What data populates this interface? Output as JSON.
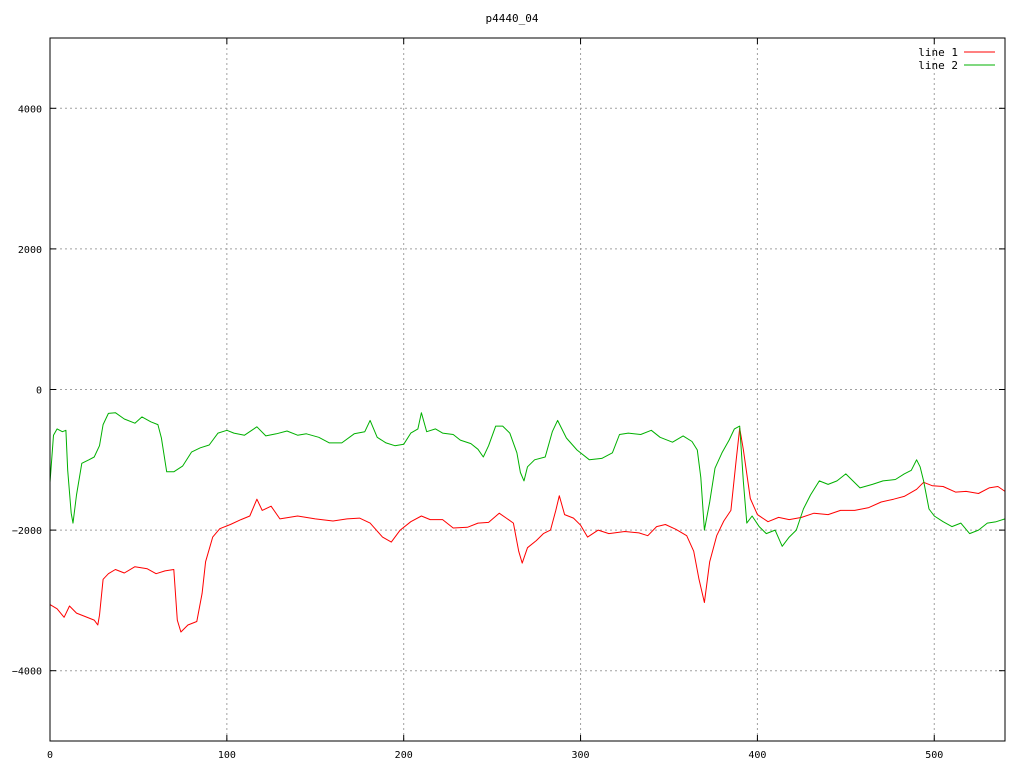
{
  "chart_data": {
    "type": "line",
    "title": "p4440_04",
    "xlabel": "",
    "ylabel": "",
    "xlim": [
      0,
      540
    ],
    "ylim": [
      -5000,
      5000
    ],
    "xticks": [
      0,
      100,
      200,
      300,
      400,
      500
    ],
    "yticks": [
      -4000,
      -2000,
      0,
      2000,
      4000
    ],
    "grid": true,
    "legend_position": "top-right",
    "series": [
      {
        "name": "line 1",
        "color": "#ff0000",
        "points": [
          [
            0,
            -3060
          ],
          [
            4,
            -3120
          ],
          [
            8,
            -3240
          ],
          [
            11,
            -3080
          ],
          [
            15,
            -3180
          ],
          [
            20,
            -3230
          ],
          [
            25,
            -3280
          ],
          [
            27,
            -3350
          ],
          [
            28,
            -3210
          ],
          [
            30,
            -2700
          ],
          [
            33,
            -2620
          ],
          [
            37,
            -2560
          ],
          [
            42,
            -2610
          ],
          [
            48,
            -2520
          ],
          [
            55,
            -2550
          ],
          [
            60,
            -2620
          ],
          [
            65,
            -2580
          ],
          [
            70,
            -2560
          ],
          [
            72,
            -3280
          ],
          [
            74,
            -3450
          ],
          [
            78,
            -3350
          ],
          [
            83,
            -3300
          ],
          [
            86,
            -2900
          ],
          [
            88,
            -2450
          ],
          [
            92,
            -2100
          ],
          [
            96,
            -1980
          ],
          [
            102,
            -1920
          ],
          [
            108,
            -1850
          ],
          [
            113,
            -1800
          ],
          [
            117,
            -1560
          ],
          [
            120,
            -1720
          ],
          [
            125,
            -1660
          ],
          [
            130,
            -1840
          ],
          [
            140,
            -1800
          ],
          [
            150,
            -1840
          ],
          [
            160,
            -1870
          ],
          [
            168,
            -1840
          ],
          [
            175,
            -1830
          ],
          [
            181,
            -1900
          ],
          [
            188,
            -2100
          ],
          [
            193,
            -2170
          ],
          [
            198,
            -2000
          ],
          [
            204,
            -1880
          ],
          [
            210,
            -1800
          ],
          [
            215,
            -1850
          ],
          [
            222,
            -1850
          ],
          [
            228,
            -1970
          ],
          [
            236,
            -1960
          ],
          [
            242,
            -1900
          ],
          [
            248,
            -1890
          ],
          [
            254,
            -1760
          ],
          [
            258,
            -1830
          ],
          [
            262,
            -1900
          ],
          [
            265,
            -2300
          ],
          [
            267,
            -2470
          ],
          [
            270,
            -2250
          ],
          [
            275,
            -2150
          ],
          [
            279,
            -2050
          ],
          [
            283,
            -2000
          ],
          [
            286,
            -1720
          ],
          [
            288,
            -1510
          ],
          [
            291,
            -1780
          ],
          [
            296,
            -1830
          ],
          [
            300,
            -1930
          ],
          [
            304,
            -2100
          ],
          [
            310,
            -2000
          ],
          [
            316,
            -2050
          ],
          [
            325,
            -2020
          ],
          [
            333,
            -2040
          ],
          [
            338,
            -2080
          ],
          [
            343,
            -1950
          ],
          [
            348,
            -1920
          ],
          [
            354,
            -1990
          ],
          [
            360,
            -2080
          ],
          [
            364,
            -2300
          ],
          [
            367,
            -2700
          ],
          [
            370,
            -3030
          ],
          [
            373,
            -2450
          ],
          [
            377,
            -2080
          ],
          [
            381,
            -1870
          ],
          [
            385,
            -1720
          ],
          [
            388,
            -1000
          ],
          [
            390,
            -550
          ],
          [
            392,
            -850
          ],
          [
            396,
            -1550
          ],
          [
            400,
            -1780
          ],
          [
            406,
            -1880
          ],
          [
            412,
            -1820
          ],
          [
            418,
            -1850
          ],
          [
            425,
            -1820
          ],
          [
            432,
            -1760
          ],
          [
            440,
            -1780
          ],
          [
            447,
            -1720
          ],
          [
            455,
            -1720
          ],
          [
            463,
            -1680
          ],
          [
            470,
            -1600
          ],
          [
            477,
            -1560
          ],
          [
            483,
            -1520
          ],
          [
            490,
            -1420
          ],
          [
            494,
            -1320
          ],
          [
            499,
            -1370
          ],
          [
            505,
            -1380
          ],
          [
            512,
            -1460
          ],
          [
            518,
            -1450
          ],
          [
            525,
            -1480
          ],
          [
            531,
            -1400
          ],
          [
            536,
            -1380
          ],
          [
            540,
            -1450
          ]
        ]
      },
      {
        "name": "line 2",
        "color": "#00b000",
        "points": [
          [
            0,
            -1320
          ],
          [
            2,
            -650
          ],
          [
            4,
            -560
          ],
          [
            7,
            -600
          ],
          [
            9,
            -580
          ],
          [
            10,
            -1150
          ],
          [
            12,
            -1760
          ],
          [
            13,
            -1900
          ],
          [
            15,
            -1500
          ],
          [
            18,
            -1050
          ],
          [
            22,
            -1000
          ],
          [
            25,
            -960
          ],
          [
            28,
            -800
          ],
          [
            30,
            -500
          ],
          [
            33,
            -340
          ],
          [
            37,
            -330
          ],
          [
            42,
            -420
          ],
          [
            48,
            -480
          ],
          [
            52,
            -390
          ],
          [
            57,
            -460
          ],
          [
            61,
            -500
          ],
          [
            63,
            -690
          ],
          [
            66,
            -1170
          ],
          [
            70,
            -1170
          ],
          [
            75,
            -1090
          ],
          [
            80,
            -890
          ],
          [
            85,
            -830
          ],
          [
            90,
            -790
          ],
          [
            95,
            -620
          ],
          [
            100,
            -580
          ],
          [
            104,
            -620
          ],
          [
            110,
            -650
          ],
          [
            117,
            -530
          ],
          [
            122,
            -660
          ],
          [
            128,
            -630
          ],
          [
            134,
            -590
          ],
          [
            140,
            -650
          ],
          [
            145,
            -630
          ],
          [
            152,
            -680
          ],
          [
            158,
            -760
          ],
          [
            165,
            -760
          ],
          [
            172,
            -630
          ],
          [
            178,
            -600
          ],
          [
            181,
            -440
          ],
          [
            185,
            -680
          ],
          [
            190,
            -760
          ],
          [
            195,
            -800
          ],
          [
            200,
            -780
          ],
          [
            204,
            -620
          ],
          [
            208,
            -560
          ],
          [
            210,
            -330
          ],
          [
            213,
            -600
          ],
          [
            218,
            -560
          ],
          [
            222,
            -620
          ],
          [
            228,
            -640
          ],
          [
            232,
            -720
          ],
          [
            238,
            -770
          ],
          [
            242,
            -850
          ],
          [
            245,
            -960
          ],
          [
            248,
            -800
          ],
          [
            252,
            -520
          ],
          [
            256,
            -520
          ],
          [
            260,
            -620
          ],
          [
            264,
            -900
          ],
          [
            266,
            -1180
          ],
          [
            268,
            -1300
          ],
          [
            270,
            -1100
          ],
          [
            274,
            -1000
          ],
          [
            280,
            -960
          ],
          [
            284,
            -600
          ],
          [
            287,
            -440
          ],
          [
            292,
            -690
          ],
          [
            298,
            -860
          ],
          [
            305,
            -1000
          ],
          [
            312,
            -980
          ],
          [
            318,
            -900
          ],
          [
            322,
            -640
          ],
          [
            327,
            -620
          ],
          [
            334,
            -640
          ],
          [
            340,
            -580
          ],
          [
            345,
            -680
          ],
          [
            352,
            -750
          ],
          [
            358,
            -660
          ],
          [
            363,
            -740
          ],
          [
            366,
            -860
          ],
          [
            368,
            -1250
          ],
          [
            370,
            -2000
          ],
          [
            373,
            -1600
          ],
          [
            376,
            -1120
          ],
          [
            380,
            -900
          ],
          [
            384,
            -720
          ],
          [
            387,
            -560
          ],
          [
            390,
            -520
          ],
          [
            392,
            -1300
          ],
          [
            394,
            -1900
          ],
          [
            397,
            -1800
          ],
          [
            401,
            -1950
          ],
          [
            405,
            -2050
          ],
          [
            410,
            -2000
          ],
          [
            414,
            -2230
          ],
          [
            418,
            -2100
          ],
          [
            422,
            -2000
          ],
          [
            426,
            -1700
          ],
          [
            430,
            -1500
          ],
          [
            435,
            -1300
          ],
          [
            440,
            -1350
          ],
          [
            445,
            -1300
          ],
          [
            450,
            -1200
          ],
          [
            458,
            -1400
          ],
          [
            465,
            -1350
          ],
          [
            471,
            -1300
          ],
          [
            478,
            -1280
          ],
          [
            483,
            -1200
          ],
          [
            487,
            -1150
          ],
          [
            490,
            -1000
          ],
          [
            492,
            -1100
          ],
          [
            494,
            -1300
          ],
          [
            497,
            -1700
          ],
          [
            500,
            -1800
          ],
          [
            505,
            -1880
          ],
          [
            510,
            -1950
          ],
          [
            515,
            -1900
          ],
          [
            520,
            -2050
          ],
          [
            525,
            -2000
          ],
          [
            530,
            -1900
          ],
          [
            535,
            -1880
          ],
          [
            540,
            -1840
          ]
        ]
      }
    ]
  }
}
